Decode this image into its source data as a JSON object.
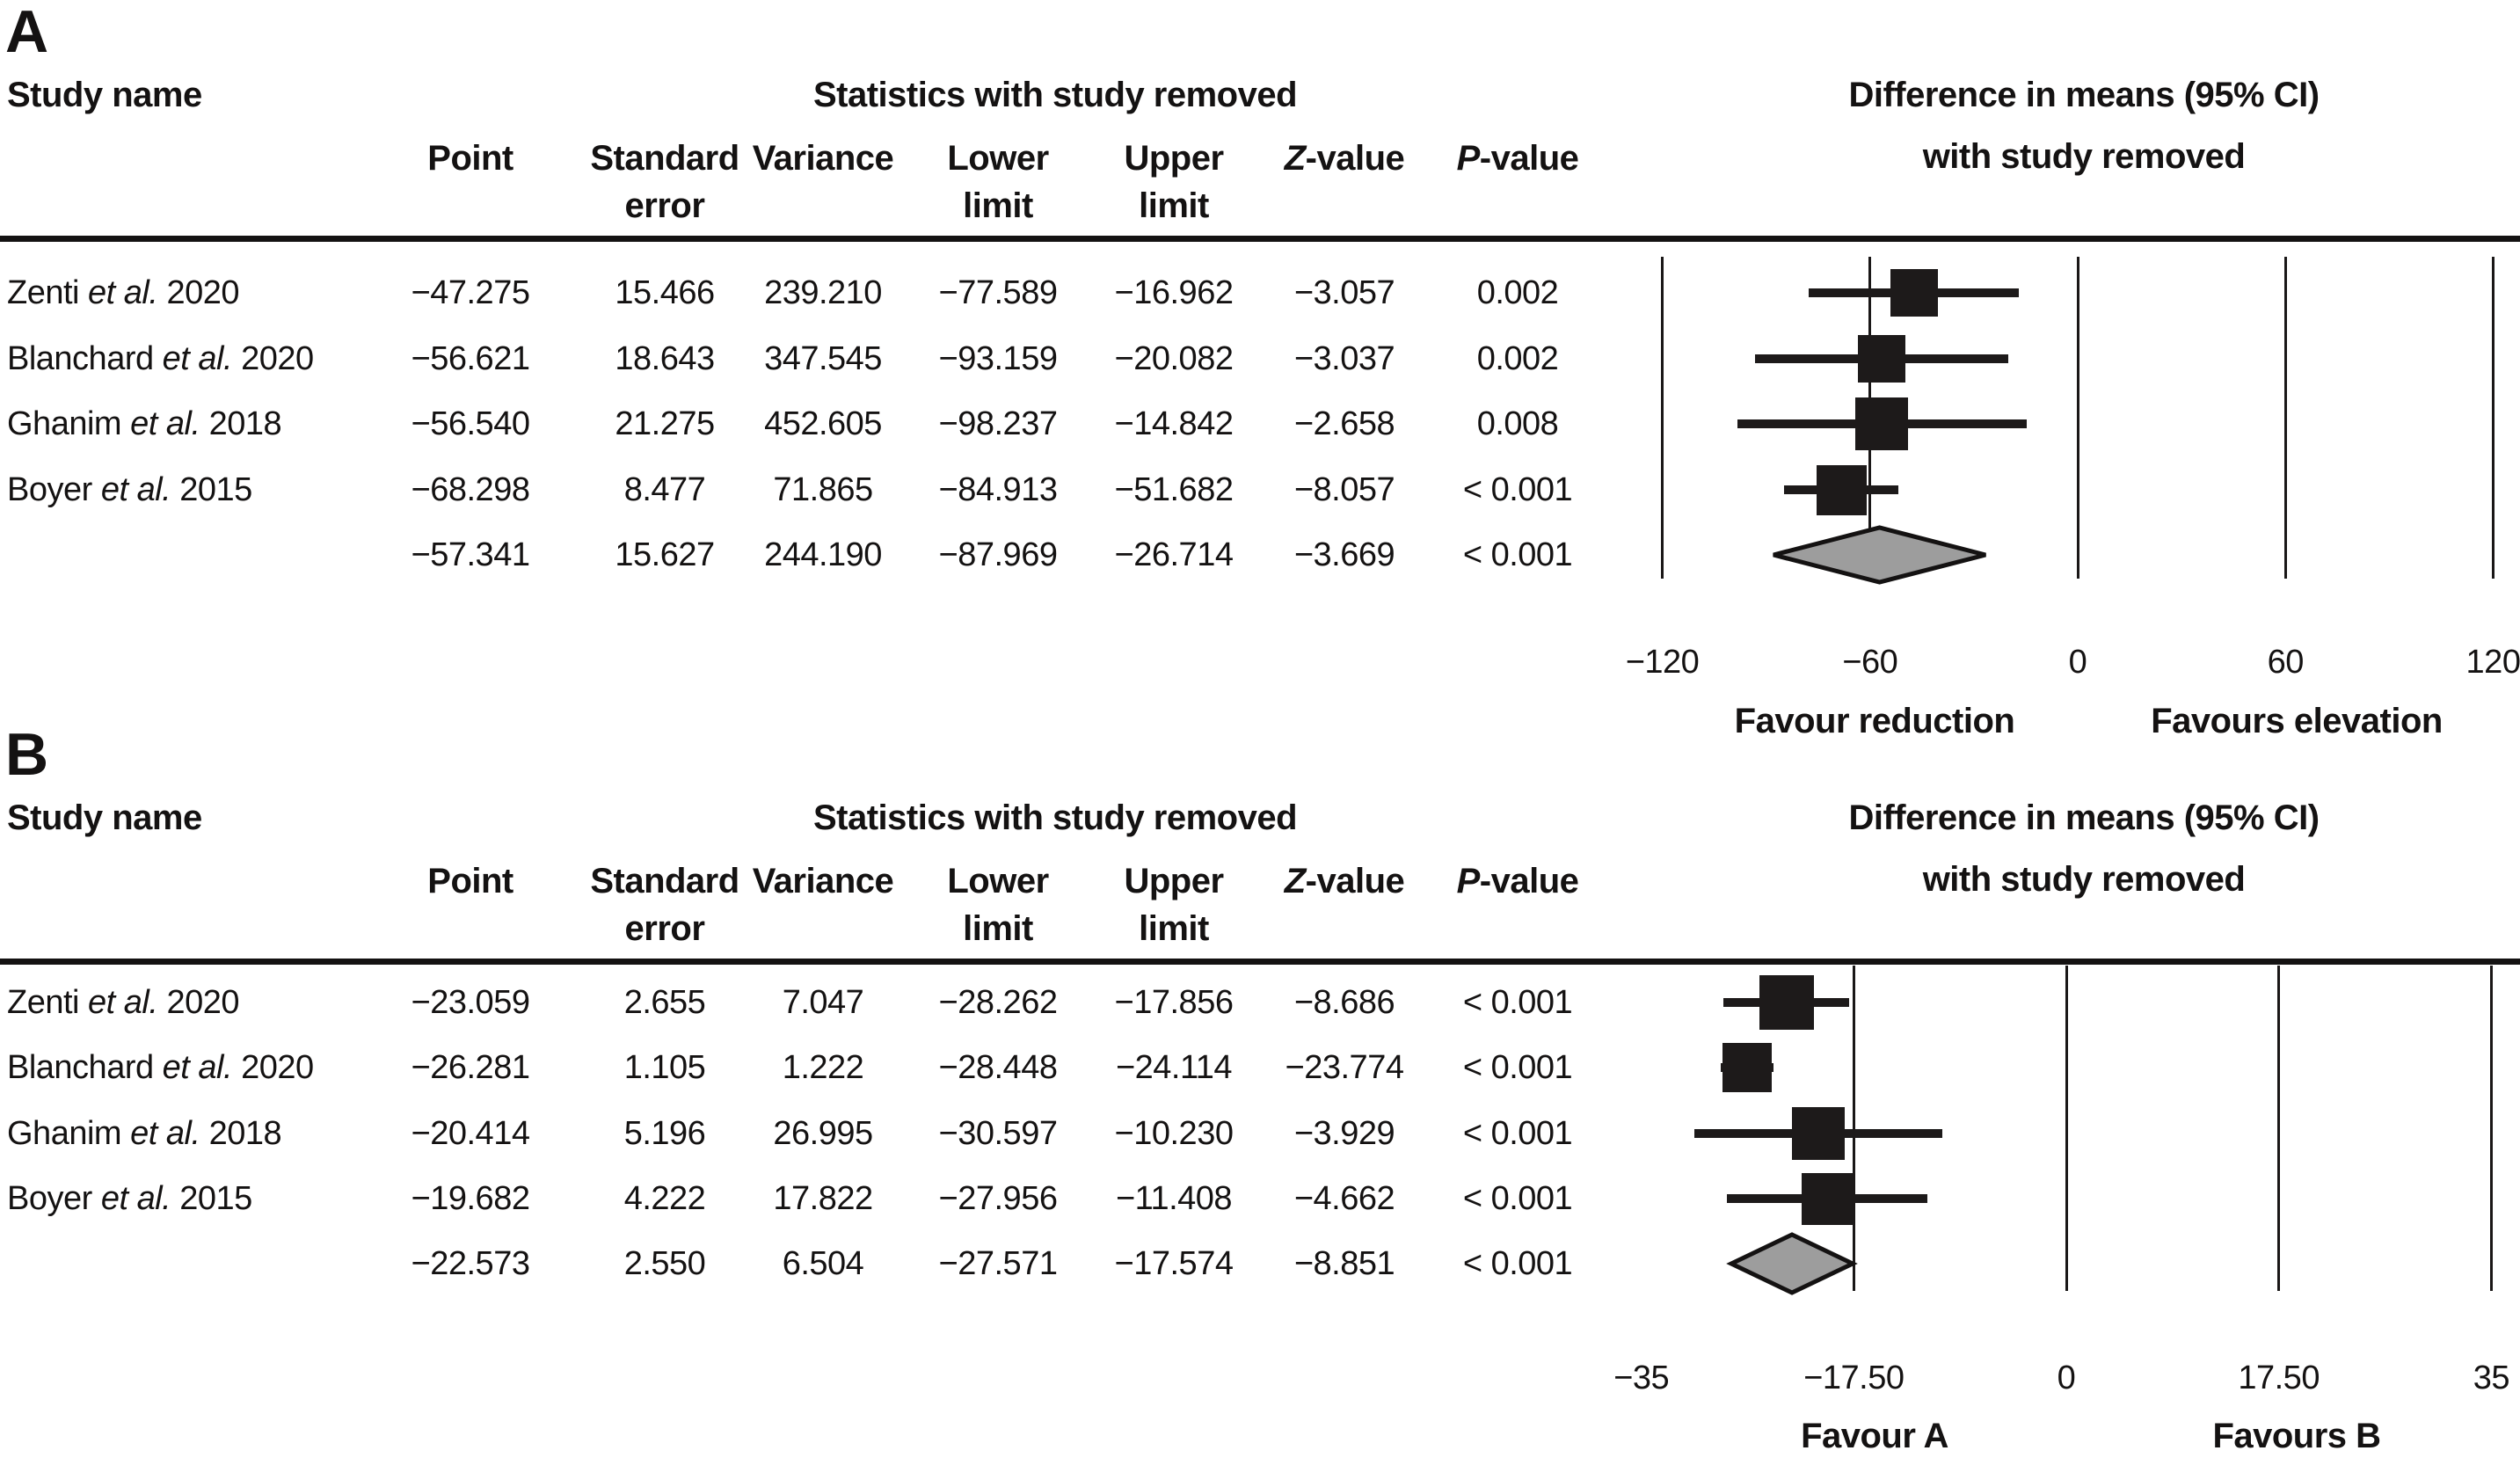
{
  "colors": {
    "ink": "#141212",
    "square": "#1d1a1a",
    "diamond_fill": "#9d9d9d",
    "background": "#ffffff"
  },
  "panels": [
    {
      "label": "A",
      "table": {
        "study_header": "Study name",
        "stats_header": "Statistics with study removed",
        "diff_header_line1": "Difference in means (95% CI)",
        "diff_header_line2": "with study removed",
        "columns": {
          "point": "Point",
          "se1": "Standard",
          "se2": "error",
          "variance": "Variance",
          "lower1": "Lower",
          "lower2": "limit",
          "upper1": "Upper",
          "upper2": "limit",
          "z_italic": "Z",
          "z_rest": "-value",
          "p_italic": "P",
          "p_rest": "-value"
        }
      },
      "rows": [
        {
          "study_pre": "Zenti ",
          "study_italic": "et al.",
          "study_post": " 2020",
          "point": "−47.275",
          "se": "15.466",
          "variance": "239.210",
          "lower": "−77.589",
          "upper": "−16.962",
          "z": "−3.057",
          "p": "0.002"
        },
        {
          "study_pre": "Blanchard ",
          "study_italic": "et al.",
          "study_post": " 2020",
          "point": "−56.621",
          "se": "18.643",
          "variance": "347.545",
          "lower": "−93.159",
          "upper": "−20.082",
          "z": "−3.037",
          "p": "0.002"
        },
        {
          "study_pre": "Ghanim ",
          "study_italic": "et al.",
          "study_post": " 2018",
          "point": "−56.540",
          "se": "21.275",
          "variance": "452.605",
          "lower": "−98.237",
          "upper": "−14.842",
          "z": "−2.658",
          "p": "0.008"
        },
        {
          "study_pre": "Boyer ",
          "study_italic": "et al.",
          "study_post": " 2015",
          "point": "−68.298",
          "se": "8.477",
          "variance": "71.865",
          "lower": "−84.913",
          "upper": "−51.682",
          "z": "−8.057",
          "p": "< 0.001"
        },
        {
          "study_pre": "",
          "study_italic": "",
          "study_post": "",
          "point": "−57.341",
          "se": "15.627",
          "variance": "244.190",
          "lower": "−87.969",
          "upper": "−26.714",
          "z": "−3.669",
          "p": "< 0.001"
        }
      ]
    },
    {
      "label": "B",
      "table": {
        "study_header": "Study name",
        "stats_header": "Statistics with study removed",
        "diff_header_line1": "Difference in means (95% CI)",
        "diff_header_line2": "with study removed",
        "columns": {
          "point": "Point",
          "se1": "Standard",
          "se2": "error",
          "variance": "Variance",
          "lower1": "Lower",
          "lower2": "limit",
          "upper1": "Upper",
          "upper2": "limit",
          "z_italic": "Z",
          "z_rest": "-value",
          "p_italic": "P",
          "p_rest": "-value"
        }
      },
      "rows": [
        {
          "study_pre": "Zenti ",
          "study_italic": "et al.",
          "study_post": " 2020",
          "point": "−23.059",
          "se": "2.655",
          "variance": "7.047",
          "lower": "−28.262",
          "upper": "−17.856",
          "z": "−8.686",
          "p": "< 0.001"
        },
        {
          "study_pre": "Blanchard ",
          "study_italic": "et al.",
          "study_post": " 2020",
          "point": "−26.281",
          "se": "1.105",
          "variance": "1.222",
          "lower": "−28.448",
          "upper": "−24.114",
          "z": "−23.774",
          "p": "< 0.001"
        },
        {
          "study_pre": "Ghanim ",
          "study_italic": "et al.",
          "study_post": " 2018",
          "point": "−20.414",
          "se": "5.196",
          "variance": "26.995",
          "lower": "−30.597",
          "upper": "−10.230",
          "z": "−3.929",
          "p": "< 0.001"
        },
        {
          "study_pre": "Boyer ",
          "study_italic": "et al.",
          "study_post": " 2015",
          "point": "−19.682",
          "se": "4.222",
          "variance": "17.822",
          "lower": "−27.956",
          "upper": "−11.408",
          "z": "−4.662",
          "p": "< 0.001"
        },
        {
          "study_pre": "",
          "study_italic": "",
          "study_post": "",
          "point": "−22.573",
          "se": "2.550",
          "variance": "6.504",
          "lower": "−27.571",
          "upper": "−17.574",
          "z": "−8.851",
          "p": "< 0.001"
        }
      ]
    }
  ],
  "chart_data": [
    {
      "type": "forest",
      "panel": "A",
      "title": "Difference in means (95% CI) with study removed",
      "axis": {
        "min": -120,
        "max": 120,
        "ticks": [
          -120,
          -60,
          0,
          60,
          120
        ],
        "tick_labels": [
          "−120",
          "−60",
          "0",
          "60",
          "120"
        ],
        "gridlines": [
          -120,
          -60,
          0,
          60,
          120
        ]
      },
      "xlabel_left": "Favour reduction",
      "xlabel_right": "Favours elevation",
      "studies": [
        {
          "name": "Zenti et al. 2020",
          "point": -47.275,
          "lower": -77.589,
          "upper": -16.962
        },
        {
          "name": "Blanchard et al. 2020",
          "point": -56.621,
          "lower": -93.159,
          "upper": -20.082
        },
        {
          "name": "Ghanim et al. 2018",
          "point": -56.54,
          "lower": -98.237,
          "upper": -14.842
        },
        {
          "name": "Boyer et al. 2015",
          "point": -68.298,
          "lower": -84.913,
          "upper": -51.682
        }
      ],
      "summary": {
        "point": -57.341,
        "lower": -87.969,
        "upper": -26.714
      }
    },
    {
      "type": "forest",
      "panel": "B",
      "title": "Difference in means (95% CI) with study removed",
      "axis": {
        "min": -35,
        "max": 35,
        "ticks": [
          -35,
          -17.5,
          0,
          17.5,
          35
        ],
        "tick_labels": [
          "−35",
          "−17.50",
          "0",
          "17.50",
          "35"
        ],
        "gridlines": [
          -17.5,
          0,
          17.5,
          35
        ]
      },
      "xlabel_left": "Favour A",
      "xlabel_right": "Favours B",
      "studies": [
        {
          "name": "Zenti et al. 2020",
          "point": -23.059,
          "lower": -28.262,
          "upper": -17.856
        },
        {
          "name": "Blanchard et al. 2020",
          "point": -26.281,
          "lower": -28.448,
          "upper": -24.114
        },
        {
          "name": "Ghanim et al. 2018",
          "point": -20.414,
          "lower": -30.597,
          "upper": -10.23
        },
        {
          "name": "Boyer et al. 2015",
          "point": -19.682,
          "lower": -27.956,
          "upper": -11.408
        }
      ],
      "summary": {
        "point": -22.573,
        "lower": -27.571,
        "upper": -17.574
      }
    }
  ]
}
